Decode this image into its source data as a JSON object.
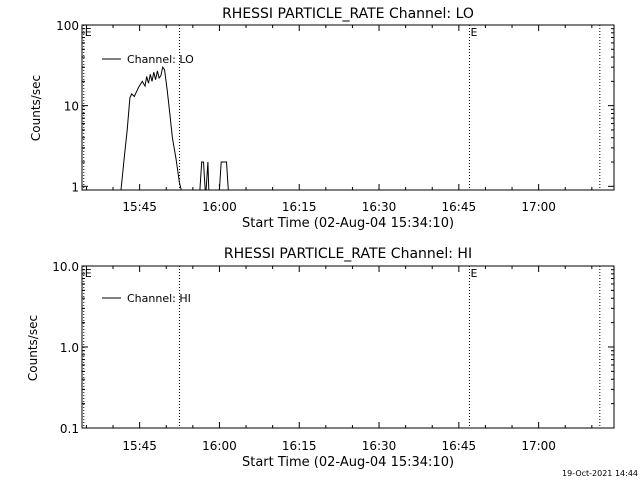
{
  "chart_data": [
    {
      "type": "line",
      "title": "RHESSI PARTICLE_RATE Channel: LO",
      "xlabel": "Start Time (02-Aug-04 15:34:10)",
      "ylabel": "Counts/sec",
      "yscale": "log",
      "ylim": [
        0.9,
        100
      ],
      "xlim": [
        "15:34:10",
        "17:14:10"
      ],
      "xticks": [
        "15:45",
        "16:00",
        "16:15",
        "16:30",
        "16:45",
        "17:00"
      ],
      "yticks": [
        "1",
        "10",
        "100"
      ],
      "grid": false,
      "legend": {
        "position": "top-left",
        "entries": [
          "Channel: LO"
        ]
      },
      "markers": [
        {
          "time": "15:34:30",
          "label": "E"
        },
        {
          "time": "15:52:30",
          "label": ""
        },
        {
          "time": "16:47:00",
          "label": "E"
        },
        {
          "time": "17:11:30",
          "label": ""
        }
      ],
      "series": [
        {
          "name": "Channel: LO",
          "segments": [
            [
              [
                "15:41:30",
                0.9
              ],
              [
                "15:42:10",
                2.5
              ],
              [
                "15:42:40",
                5.0
              ],
              [
                "15:43:10",
                12.5
              ],
              [
                "15:43:30",
                14.0
              ],
              [
                "15:44:00",
                13.0
              ],
              [
                "15:44:20",
                14.5
              ],
              [
                "15:44:50",
                17.0
              ],
              [
                "15:45:30",
                20.0
              ],
              [
                "15:46:00",
                17.5
              ],
              [
                "15:46:20",
                23.0
              ],
              [
                "15:46:40",
                19.0
              ],
              [
                "15:47:00",
                24.5
              ],
              [
                "15:47:20",
                20.0
              ],
              [
                "15:47:40",
                26.0
              ],
              [
                "15:48:00",
                21.0
              ],
              [
                "15:48:20",
                27.0
              ],
              [
                "15:48:40",
                22.0
              ],
              [
                "15:49:00",
                23.5
              ],
              [
                "15:49:20",
                30.0
              ],
              [
                "15:49:40",
                28.0
              ],
              [
                "15:50:10",
                16.0
              ],
              [
                "15:50:40",
                8.0
              ],
              [
                "15:51:10",
                4.0
              ],
              [
                "15:51:50",
                2.2
              ],
              [
                "15:52:30",
                1.1
              ],
              [
                "15:52:50",
                0.9
              ]
            ],
            [
              [
                "15:56:20",
                0.9
              ],
              [
                "15:56:40",
                2.0
              ],
              [
                "15:57:00",
                2.0
              ],
              [
                "15:57:20",
                0.9
              ]
            ],
            [
              [
                "15:57:30",
                0.9
              ],
              [
                "15:57:50",
                2.0
              ],
              [
                "15:58:00",
                0.9
              ]
            ],
            [
              [
                "16:00:00",
                0.9
              ],
              [
                "16:00:20",
                2.0
              ],
              [
                "16:01:20",
                2.0
              ],
              [
                "16:01:40",
                0.9
              ]
            ]
          ]
        }
      ]
    },
    {
      "type": "line",
      "title": "RHESSI PARTICLE_RATE Channel: HI",
      "xlabel": "Start Time (02-Aug-04 15:34:10)",
      "ylabel": "Counts/sec",
      "yscale": "log",
      "ylim": [
        0.1,
        10
      ],
      "xlim": [
        "15:34:10",
        "17:14:10"
      ],
      "xticks": [
        "15:45",
        "16:00",
        "16:15",
        "16:30",
        "16:45",
        "17:00"
      ],
      "yticks": [
        "0.1",
        "1.0",
        "10.0"
      ],
      "grid": false,
      "legend": {
        "position": "top-left",
        "entries": [
          "Channel: HI"
        ]
      },
      "markers": [
        {
          "time": "15:34:30",
          "label": "E"
        },
        {
          "time": "15:52:30",
          "label": ""
        },
        {
          "time": "16:47:00",
          "label": "E"
        },
        {
          "time": "17:11:30",
          "label": ""
        }
      ],
      "series": [
        {
          "name": "Channel: HI",
          "segments": []
        }
      ]
    }
  ],
  "footer": {
    "timestamp": "19-Oct-2021 14:44"
  }
}
